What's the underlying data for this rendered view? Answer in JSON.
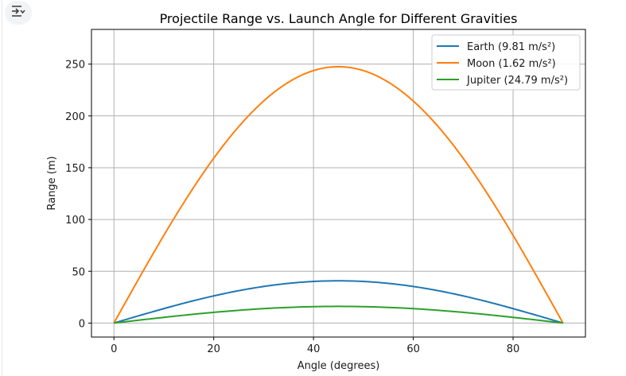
{
  "ui": {
    "output_button_icon": "output-menu-icon"
  },
  "chart_data": {
    "type": "line",
    "title": "Projectile Range vs. Launch Angle for Different Gravities",
    "xlabel": "Angle (degrees)",
    "ylabel": "Range (m)",
    "xlim": [
      -4.5,
      94.5
    ],
    "ylim": [
      -13.5,
      283.5
    ],
    "xticks": [
      0,
      20,
      40,
      60,
      80
    ],
    "yticks": [
      0,
      50,
      100,
      150,
      200,
      250
    ],
    "grid": true,
    "legend_position": "top-right",
    "x": [
      0,
      5,
      10,
      15,
      20,
      25,
      30,
      35,
      40,
      45,
      50,
      55,
      60,
      65,
      70,
      75,
      80,
      85,
      90
    ],
    "series": [
      {
        "name": "Earth (9.81 m/s²)",
        "color": "#1f77b4",
        "values": [
          0,
          7.1,
          13.9,
          20.4,
          26.2,
          31.2,
          35.3,
          38.4,
          40.1,
          40.8,
          40.1,
          38.4,
          35.3,
          31.2,
          26.2,
          20.4,
          13.9,
          7.1,
          0
        ]
      },
      {
        "name": "Moon (1.62 m/s²)",
        "color": "#ff7f0e",
        "values": [
          0,
          42.9,
          84.5,
          123.5,
          158.8,
          189.2,
          214.1,
          232.6,
          243.9,
          247.5,
          243.9,
          232.6,
          214.1,
          189.2,
          158.8,
          123.5,
          84.5,
          42.9,
          0
        ]
      },
      {
        "name": "Jupiter (24.79 m/s²)",
        "color": "#2ca02c",
        "values": [
          0,
          2.8,
          5.5,
          8.1,
          10.4,
          12.4,
          14.0,
          15.2,
          15.9,
          16.1,
          15.9,
          15.2,
          14.0,
          12.4,
          10.4,
          8.1,
          5.5,
          2.8,
          0
        ]
      }
    ]
  }
}
